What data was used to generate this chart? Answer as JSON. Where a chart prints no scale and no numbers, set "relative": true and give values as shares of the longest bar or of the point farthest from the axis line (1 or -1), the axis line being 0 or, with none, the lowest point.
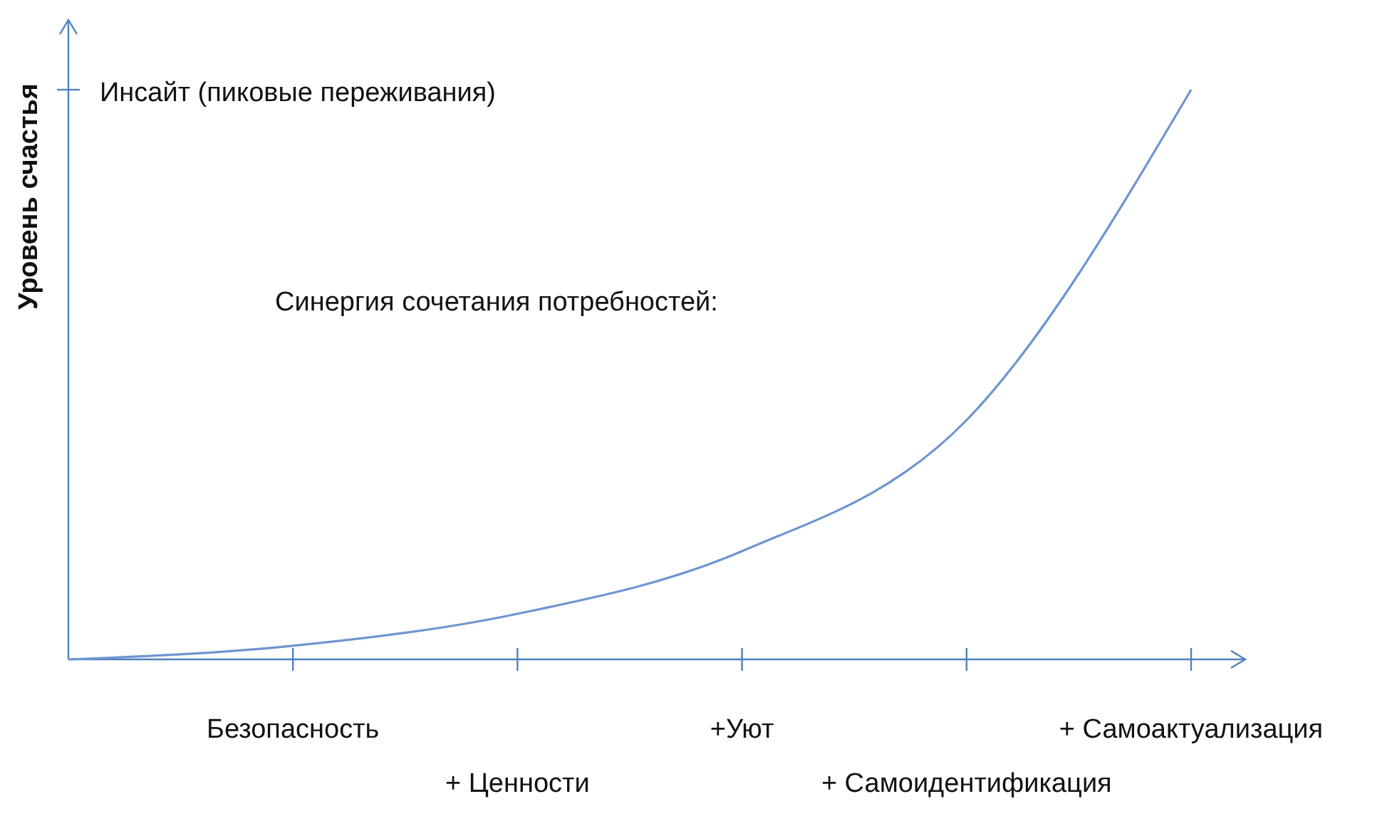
{
  "chart_data": {
    "type": "line",
    "relative": true,
    "ylabel": "Уровень счастья",
    "categories": [
      null,
      "Безопасность",
      "+ Ценности",
      "+Уют",
      "+ Самоидентификация",
      "+ Самоактуализация"
    ],
    "series": [
      {
        "color": "#6f94d2",
        "values": [
          0,
          0.024,
          0.08,
          0.19,
          0.42,
          1
        ]
      }
    ],
    "annotations": [
      "Инсайт (пиковые переживания)",
      "Синергия сочетания потребностей:"
    ],
    "marker": "none"
  }
}
